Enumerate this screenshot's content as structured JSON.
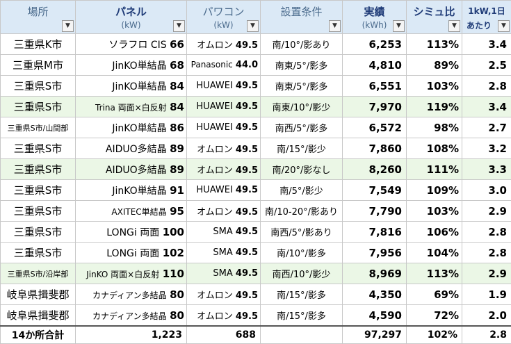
{
  "header": {
    "location": {
      "main": "場所"
    },
    "panel": {
      "main": "パネル",
      "sub": "(kW)"
    },
    "pcs": {
      "main": "パワコン",
      "sub": "(kW)"
    },
    "conditions": {
      "main": "設置条件"
    },
    "result": {
      "main": "実績",
      "sub": "(kWh)"
    },
    "sim_ratio": {
      "main": "シミュ比"
    },
    "per_kw": {
      "line1": "1kW,1日",
      "line2": "あたり"
    },
    "dropdown_glyph": "▼"
  },
  "rows": [
    {
      "location": "三重県K市",
      "panel_name": "ソラフロ CIS",
      "panel_kw": "66",
      "pcs_name": "オムロン",
      "pcs_kw": "49.5",
      "condition": "南/10°/影あり",
      "result": "6,253",
      "sim_ratio": "113%",
      "per_kw_day": "3.4"
    },
    {
      "location": "三重県M市",
      "panel_name": "JinKO単結晶",
      "panel_kw": "68",
      "pcs_name": "Panasonic",
      "pcs_kw": "44.0",
      "condition": "南東/5°/影多",
      "result": "4,810",
      "sim_ratio": "89%",
      "per_kw_day": "2.5"
    },
    {
      "location": "三重県S市",
      "panel_name": "JinKO単結晶",
      "panel_kw": "84",
      "pcs_name": "HUAWEI",
      "pcs_kw": "49.5",
      "condition": "南東/5°/影多",
      "result": "6,551",
      "sim_ratio": "103%",
      "per_kw_day": "2.8"
    },
    {
      "location": "三重県S市",
      "panel_name": "Trina 両面×白反射",
      "panel_kw": "84",
      "pcs_name": "HUAWEI",
      "pcs_kw": "49.5",
      "condition": "南東/10°/影少",
      "result": "7,970",
      "sim_ratio": "119%",
      "per_kw_day": "3.4",
      "highlight": true
    },
    {
      "location": "三重県S市/山間部",
      "panel_name": "JinKO単結晶",
      "panel_kw": "86",
      "pcs_name": "HUAWEI",
      "pcs_kw": "49.5",
      "condition": "南西/5°/影多",
      "result": "6,572",
      "sim_ratio": "98%",
      "per_kw_day": "2.7"
    },
    {
      "location": "三重県S市",
      "panel_name": "AIDUO多結晶",
      "panel_kw": "89",
      "pcs_name": "オムロン",
      "pcs_kw": "49.5",
      "condition": "南/15°/影少",
      "result": "7,860",
      "sim_ratio": "108%",
      "per_kw_day": "3.2"
    },
    {
      "location": "三重県S市",
      "panel_name": "AIDUO多結晶",
      "panel_kw": "89",
      "pcs_name": "オムロン",
      "pcs_kw": "49.5",
      "condition": "南/20°/影なし",
      "result": "8,260",
      "sim_ratio": "111%",
      "per_kw_day": "3.3",
      "highlight": true
    },
    {
      "location": "三重県S市",
      "panel_name": "JinKO単結晶",
      "panel_kw": "91",
      "pcs_name": "HUAWEI",
      "pcs_kw": "49.5",
      "condition": "南/5°/影少",
      "result": "7,549",
      "sim_ratio": "109%",
      "per_kw_day": "3.0"
    },
    {
      "location": "三重県S市",
      "panel_name": "AXITEC単結晶",
      "panel_kw": "95",
      "pcs_name": "オムロン",
      "pcs_kw": "49.5",
      "condition": "南/10-20°/影あり",
      "result": "7,790",
      "sim_ratio": "103%",
      "per_kw_day": "2.9"
    },
    {
      "location": "三重県S市",
      "panel_name": "LONGi 両面",
      "panel_kw": "100",
      "pcs_name": "SMA",
      "pcs_kw": "49.5",
      "condition": "南西/5°/影あり",
      "result": "7,816",
      "sim_ratio": "106%",
      "per_kw_day": "2.8"
    },
    {
      "location": "三重県S市",
      "panel_name": "LONGi 両面",
      "panel_kw": "102",
      "pcs_name": "SMA",
      "pcs_kw": "49.5",
      "condition": "南/10°/影多",
      "result": "7,956",
      "sim_ratio": "104%",
      "per_kw_day": "2.8"
    },
    {
      "location": "三重県S市/沿岸部",
      "panel_name": "JinKO 両面×白反射",
      "panel_kw": "110",
      "pcs_name": "SMA",
      "pcs_kw": "49.5",
      "condition": "南西/10°/影少",
      "result": "8,969",
      "sim_ratio": "113%",
      "per_kw_day": "2.9",
      "highlight": true
    },
    {
      "location": "岐阜県揖斐郡",
      "panel_name": "カナディアン多結晶",
      "panel_kw": "80",
      "pcs_name": "オムロン",
      "pcs_kw": "49.5",
      "condition": "南/15°/影多",
      "result": "4,350",
      "sim_ratio": "69%",
      "per_kw_day": "1.9"
    },
    {
      "location": "岐阜県揖斐郡",
      "panel_name": "カナディアン多結晶",
      "panel_kw": "80",
      "pcs_name": "オムロン",
      "pcs_kw": "49.5",
      "condition": "南/15°/影多",
      "result": "4,590",
      "sim_ratio": "72%",
      "per_kw_day": "2.0"
    }
  ],
  "total": {
    "label": "14か所合計",
    "panel_kw": "1,223",
    "pcs_kw": "688",
    "condition": "",
    "result": "97,297",
    "sim_ratio": "102%",
    "per_kw_day": "2.8"
  },
  "colors": {
    "header_bg": "#dbe9f6",
    "highlight_row": "#ebf7e6"
  }
}
